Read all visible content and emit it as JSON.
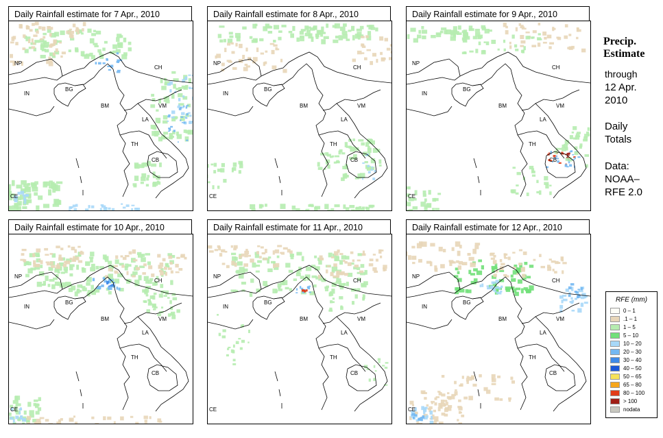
{
  "panels": [
    {
      "title": "Daily Rainfall estimate for  7 Apr., 2010"
    },
    {
      "title": "Daily Rainfall estimate for  8 Apr., 2010"
    },
    {
      "title": "Daily Rainfall estimate for  9 Apr., 2010"
    },
    {
      "title": "Daily Rainfall estimate for  10 Apr., 2010"
    },
    {
      "title": "Daily Rainfall estimate for  11 Apr., 2010"
    },
    {
      "title": "Daily Rainfall estimate for  12 Apr., 2010"
    }
  ],
  "country_labels": [
    "NP",
    "CH",
    "IN",
    "BG",
    "BM",
    "VM",
    "LA",
    "TH",
    "CB",
    "CE"
  ],
  "side": {
    "title_line1": "Precip.",
    "title_line2": "Estimate",
    "through": "through",
    "date_line1": "12 Apr.",
    "date_line2": "2010",
    "daily": "Daily",
    "totals": "Totals",
    "data": "Data:",
    "source1": "NOAA–",
    "source2": "RFE 2.0"
  },
  "legend": {
    "title": "RFE (mm)",
    "items": [
      {
        "label": "0 – 1",
        "color": "#fdfdf6"
      },
      {
        "label": ".1 – 1",
        "color": "#e8d6b8"
      },
      {
        "label": "1 – 5",
        "color": "#b6ecb0"
      },
      {
        "label": "5 – 10",
        "color": "#72e07a"
      },
      {
        "label": "10 – 20",
        "color": "#a8d8f8"
      },
      {
        "label": "20 – 30",
        "color": "#74b8f2"
      },
      {
        "label": "30 – 40",
        "color": "#3f8ae8"
      },
      {
        "label": "40 – 50",
        "color": "#1c58d8"
      },
      {
        "label": "50 – 65",
        "color": "#f7e25a"
      },
      {
        "label": "65 – 80",
        "color": "#f6a61a"
      },
      {
        "label": "80 – 100",
        "color": "#e23c18"
      },
      {
        "label": "> 100",
        "color": "#a01e16"
      },
      {
        "label": "nodata",
        "color": "#c8c8c0"
      }
    ]
  }
}
